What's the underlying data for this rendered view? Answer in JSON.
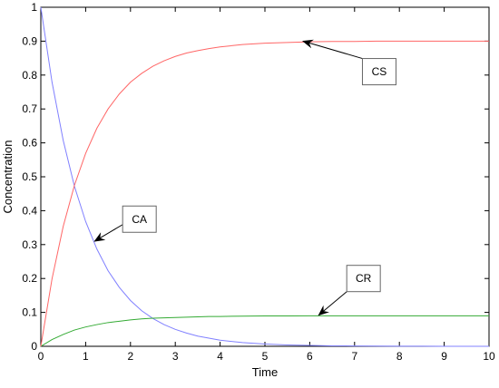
{
  "chart_data": {
    "type": "line",
    "title": "",
    "xlabel": "Time",
    "ylabel": "Concentration",
    "xlim": [
      0,
      10
    ],
    "ylim": [
      0,
      1
    ],
    "xticks": [
      0,
      1,
      2,
      3,
      4,
      5,
      6,
      7,
      8,
      9,
      10
    ],
    "yticks": [
      0,
      0.1,
      0.2,
      0.3,
      0.4,
      0.5,
      0.6,
      0.7,
      0.8,
      0.9,
      1
    ],
    "grid": false,
    "x": [
      0,
      0.25,
      0.5,
      0.75,
      1,
      1.25,
      1.5,
      1.75,
      2,
      2.25,
      2.5,
      2.75,
      3,
      3.25,
      3.5,
      3.75,
      4,
      4.5,
      5,
      5.5,
      6,
      6.5,
      7,
      7.5,
      8,
      8.5,
      9,
      9.5,
      10
    ],
    "series": [
      {
        "name": "CA",
        "color": "#8080ff",
        "values": [
          1.0,
          0.779,
          0.607,
          0.472,
          0.368,
          0.287,
          0.223,
          0.174,
          0.135,
          0.105,
          0.082,
          0.064,
          0.05,
          0.039,
          0.03,
          0.024,
          0.018,
          0.011,
          0.0067,
          0.004,
          0.0025,
          0.0015,
          0.001,
          0.0006,
          0.0003,
          0.0002,
          0.0001,
          0.0001,
          0.0
        ]
      },
      {
        "name": "CR",
        "color": "#33aa33",
        "values": [
          0.0,
          0.02,
          0.035,
          0.048,
          0.057,
          0.064,
          0.07,
          0.074,
          0.078,
          0.081,
          0.083,
          0.084,
          0.085,
          0.086,
          0.087,
          0.088,
          0.088,
          0.089,
          0.0895,
          0.0897,
          0.0898,
          0.0899,
          0.09,
          0.09,
          0.09,
          0.09,
          0.09,
          0.09,
          0.09
        ]
      },
      {
        "name": "CS",
        "color": "#ff6666",
        "values": [
          0.0,
          0.199,
          0.354,
          0.475,
          0.569,
          0.643,
          0.7,
          0.744,
          0.779,
          0.805,
          0.826,
          0.842,
          0.855,
          0.865,
          0.872,
          0.878,
          0.883,
          0.89,
          0.894,
          0.896,
          0.898,
          0.899,
          0.899,
          0.9,
          0.9,
          0.9,
          0.9,
          0.9,
          0.9
        ]
      }
    ],
    "annotations": [
      {
        "text": "CS",
        "box_x": 7.55,
        "box_y": 0.81,
        "arrow_to": [
          5.85,
          0.9
        ]
      },
      {
        "text": "CA",
        "box_x": 2.2,
        "box_y": 0.375,
        "arrow_to": [
          1.2,
          0.31
        ]
      },
      {
        "text": "CR",
        "box_x": 7.2,
        "box_y": 0.2,
        "arrow_to": [
          6.2,
          0.092
        ]
      }
    ]
  }
}
